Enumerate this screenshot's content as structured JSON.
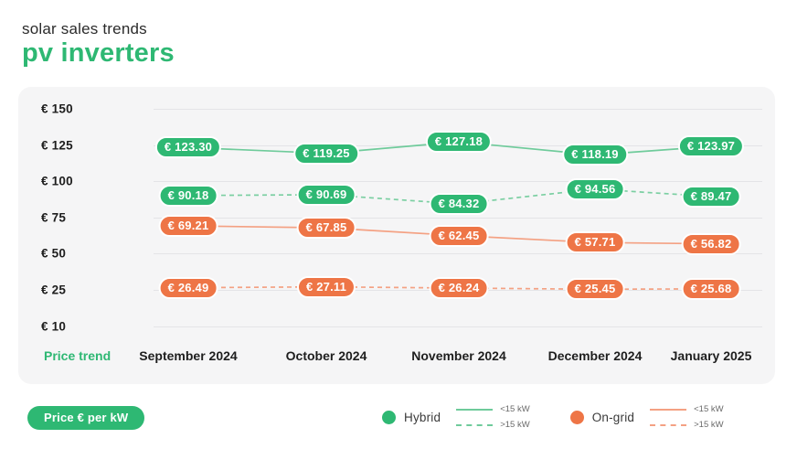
{
  "header": {
    "subtitle": "solar sales trends",
    "title": "pv inverters"
  },
  "colors": {
    "green": "#2eb873",
    "green_line": "#6fcb9b",
    "orange": "#ee7546",
    "orange_line": "#f4a183",
    "card_bg": "#f5f5f6",
    "grid_line": "#e4e4e7",
    "text_dark": "#1e1e1e"
  },
  "chart_data": {
    "type": "line",
    "currency_prefix": "€ ",
    "y_ticks": [
      150,
      125,
      100,
      75,
      50,
      25,
      10
    ],
    "x_axis_title": "Price trend",
    "categories": [
      "September 2024",
      "October 2024",
      "November 2024",
      "December 2024",
      "January 2025"
    ],
    "series": [
      {
        "name": "Hybrid <15 kW",
        "group": "Hybrid",
        "style": "solid",
        "color": "#2eb873",
        "line_color": "#6fcb9b",
        "values": [
          123.3,
          119.25,
          127.18,
          118.19,
          123.97
        ]
      },
      {
        "name": "Hybrid >15 kW",
        "group": "Hybrid",
        "style": "dashed",
        "color": "#2eb873",
        "line_color": "#7bcfa2",
        "values": [
          90.18,
          90.69,
          84.32,
          94.56,
          89.47
        ]
      },
      {
        "name": "On-grid <15 kW",
        "group": "On-grid",
        "style": "solid",
        "color": "#ee7546",
        "line_color": "#f4a183",
        "values": [
          69.21,
          67.85,
          62.45,
          57.71,
          56.82
        ]
      },
      {
        "name": "On-grid >15 kW",
        "group": "On-grid",
        "style": "dashed",
        "color": "#ee7546",
        "line_color": "#f4a183",
        "values": [
          26.49,
          27.11,
          26.24,
          25.45,
          25.68
        ]
      }
    ],
    "grid": true,
    "legend_position": "bottom",
    "data_labels": true
  },
  "footer": {
    "badge": "Price € per kW",
    "legend": {
      "groups": [
        {
          "name": "Hybrid",
          "color": "#2eb873",
          "line_color": "#6fcb9b",
          "entries": [
            {
              "style": "solid",
              "label": "<15 kW"
            },
            {
              "style": "dashed",
              "label": ">15 kW"
            }
          ]
        },
        {
          "name": "On-grid",
          "color": "#ee7546",
          "line_color": "#f4a183",
          "entries": [
            {
              "style": "solid",
              "label": "<15 kW"
            },
            {
              "style": "dashed",
              "label": ">15 kW"
            }
          ]
        }
      ]
    }
  }
}
